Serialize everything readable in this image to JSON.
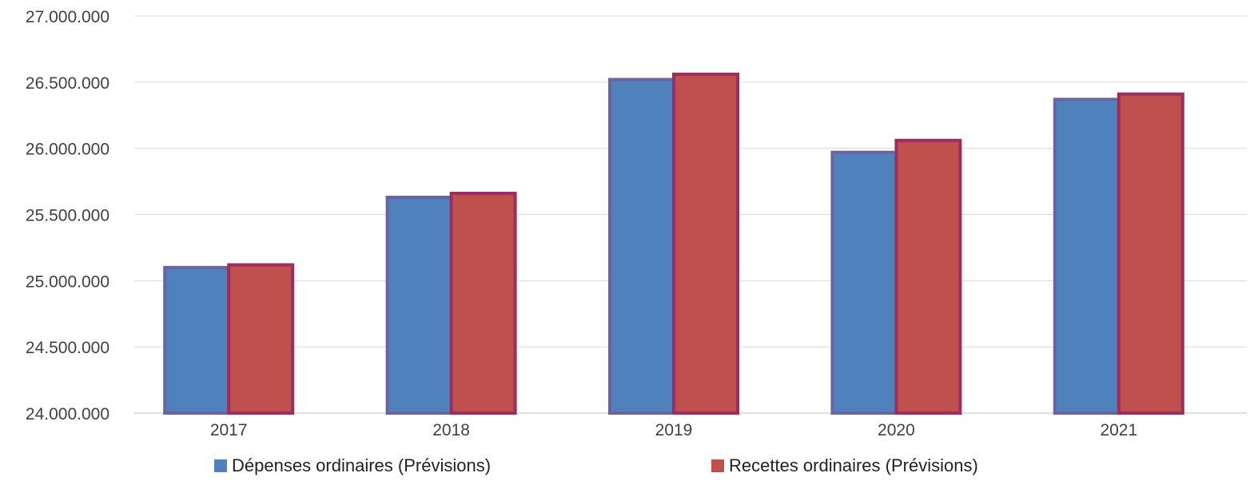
{
  "chart_data": {
    "type": "bar",
    "title": "",
    "xlabel": "",
    "ylabel": "",
    "categories": [
      "2017",
      "2018",
      "2019",
      "2020",
      "2021"
    ],
    "series": [
      {
        "name": "Dépenses ordinaires (Prévisions)",
        "color": "#4f81bd",
        "border": "#6a64a0",
        "values": [
          25100000,
          25630000,
          26520000,
          25970000,
          26370000
        ]
      },
      {
        "name": "Recettes ordinaires (Prévisions)",
        "color": "#c0504d",
        "border": "#9b2d5f",
        "values": [
          25120000,
          25660000,
          26560000,
          26060000,
          26410000
        ]
      }
    ],
    "ylim": [
      24000000,
      27000000
    ],
    "y_ticks": [
      24000000,
      24500000,
      25000000,
      25500000,
      26000000,
      26500000,
      27000000
    ],
    "y_tick_labels": [
      "24.000.000",
      "24.500.000",
      "25.000.000",
      "25.500.000",
      "26.000.000",
      "26.500.000",
      "27.000.000"
    ],
    "grid": true,
    "legend_position": "bottom"
  }
}
